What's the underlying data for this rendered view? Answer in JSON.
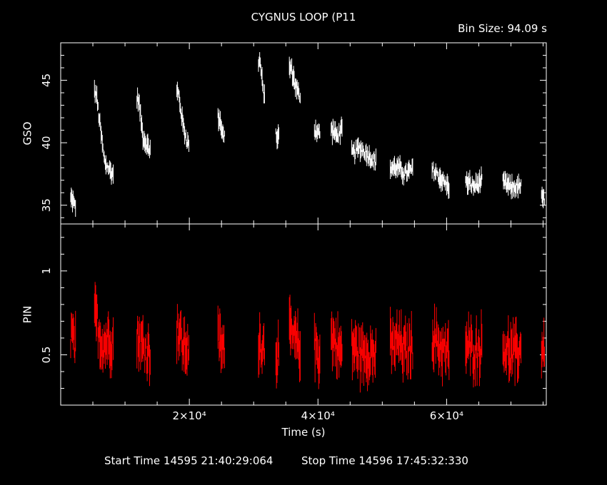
{
  "header": {
    "title": "CYGNUS LOOP (P11",
    "bin_size": "Bin Size: 94.09 s"
  },
  "footer": {
    "start_label": "Start Time",
    "start_value": "14595 21:40:29:064",
    "stop_label": "Stop Time",
    "stop_value": "14596 17:45:32:330"
  },
  "colors": {
    "gso": "#ffffff",
    "pin": "#ff0000",
    "axes": "#ffffff",
    "background": "#000000"
  },
  "chart_data": {
    "type": "line",
    "title": "CYGNUS LOOP (P11",
    "xlabel": "Time (s)",
    "xlim": [
      0,
      75500
    ],
    "x_ticks": [
      {
        "value": 20000,
        "label": "2×10⁴"
      },
      {
        "value": 40000,
        "label": "4×10⁴"
      },
      {
        "value": 60000,
        "label": "6×10⁴"
      }
    ],
    "panels": [
      {
        "name": "GSO",
        "ylabel": "GSO",
        "ylim": [
          33.5,
          48
        ],
        "y_ticks": [
          {
            "value": 35,
            "label": "35"
          },
          {
            "value": 40,
            "label": "40"
          },
          {
            "value": 45,
            "label": "45"
          }
        ],
        "color": "#ffffff",
        "segments": [
          {
            "x": [
              1800,
              2100
            ],
            "y": [
              35.5,
              35.0
            ]
          },
          {
            "x": [
              5500,
              6800,
              8000
            ],
            "y": [
              44.0,
              38.5,
              37.5
            ]
          },
          {
            "x": [
              12100,
              12800,
              13700
            ],
            "y": [
              43.5,
              40.5,
              39.5
            ]
          },
          {
            "x": [
              18300,
              19000,
              19700
            ],
            "y": [
              44.0,
              41.5,
              40.0
            ]
          },
          {
            "x": [
              24700,
              25300
            ],
            "y": [
              42.0,
              40.5
            ]
          },
          {
            "x": [
              31000,
              31500
            ],
            "y": [
              46.5,
              44.0
            ]
          },
          {
            "x": [
              33700
            ],
            "y": [
              40.5
            ]
          },
          {
            "x": [
              35800,
              36400,
              37000
            ],
            "y": [
              46.0,
              44.8,
              43.8
            ]
          },
          {
            "x": [
              39700,
              40100
            ],
            "y": [
              41.0,
              40.8
            ]
          },
          {
            "x": [
              42300,
              43000,
              43500
            ],
            "y": [
              41.0,
              40.5,
              41.0
            ]
          },
          {
            "x": [
              45500,
              46500,
              47500,
              48800
            ],
            "y": [
              39.2,
              39.6,
              39.2,
              38.5
            ]
          },
          {
            "x": [
              51500,
              52500,
              53500,
              54500
            ],
            "y": [
              38.0,
              38.0,
              37.5,
              37.8
            ]
          },
          {
            "x": [
              58000,
              59000,
              60200
            ],
            "y": [
              37.8,
              37.2,
              36.5
            ]
          },
          {
            "x": [
              63200,
              64300,
              65300
            ],
            "y": [
              36.8,
              36.5,
              36.9
            ]
          },
          {
            "x": [
              69000,
              70000,
              71400
            ],
            "y": [
              36.8,
              36.4,
              36.5
            ]
          },
          {
            "x": [
              75000
            ],
            "y": [
              35.5
            ]
          }
        ]
      },
      {
        "name": "PIN",
        "ylabel": "PIN",
        "ylim": [
          0.2,
          1.28
        ],
        "y_ticks": [
          {
            "value": 0.5,
            "label": "0.5"
          },
          {
            "value": 1,
            "label": "1"
          }
        ],
        "color": "#ff0000",
        "segments": [
          {
            "x": [
              1800,
              2100
            ],
            "y": [
              0.62,
              0.55
            ]
          },
          {
            "x": [
              5500,
              6500,
              7500,
              8000
            ],
            "y": [
              0.72,
              0.55,
              0.6,
              0.58
            ]
          },
          {
            "x": [
              12100,
              12800,
              13700
            ],
            "y": [
              0.6,
              0.55,
              0.52
            ]
          },
          {
            "x": [
              18300,
              19000,
              19700
            ],
            "y": [
              0.65,
              0.55,
              0.55
            ]
          },
          {
            "x": [
              24700,
              25300
            ],
            "y": [
              0.58,
              0.52
            ]
          },
          {
            "x": [
              31000,
              31500
            ],
            "y": [
              0.58,
              0.55
            ]
          },
          {
            "x": [
              33700
            ],
            "y": [
              0.52
            ]
          },
          {
            "x": [
              35800,
              36400,
              37000
            ],
            "y": [
              0.62,
              0.58,
              0.55
            ]
          },
          {
            "x": [
              39700,
              40100
            ],
            "y": [
              0.55,
              0.5
            ]
          },
          {
            "x": [
              42300,
              43000,
              43500
            ],
            "y": [
              0.6,
              0.55,
              0.52
            ]
          },
          {
            "x": [
              45500,
              46500,
              47500,
              48800
            ],
            "y": [
              0.55,
              0.5,
              0.52,
              0.5
            ]
          },
          {
            "x": [
              51500,
              52500,
              53500,
              54500
            ],
            "y": [
              0.55,
              0.58,
              0.52,
              0.55
            ]
          },
          {
            "x": [
              58000,
              59000,
              60200
            ],
            "y": [
              0.6,
              0.55,
              0.5
            ]
          },
          {
            "x": [
              63200,
              64300,
              65300
            ],
            "y": [
              0.55,
              0.52,
              0.55
            ]
          },
          {
            "x": [
              69000,
              70000,
              71400
            ],
            "y": [
              0.55,
              0.5,
              0.52
            ]
          },
          {
            "x": [
              75000
            ],
            "y": [
              0.55
            ]
          }
        ]
      }
    ]
  }
}
